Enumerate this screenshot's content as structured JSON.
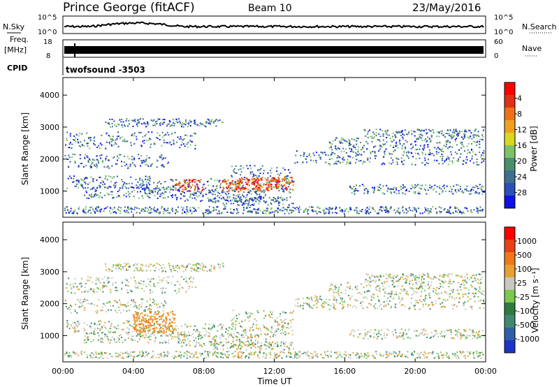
{
  "header": {
    "station": "Prince George (fitACF)",
    "beam": "Beam 10",
    "date": "23/May/2016"
  },
  "noise_panel": {
    "left_label": "N.Sky",
    "left_ticks": [
      "10^5",
      "10^0"
    ],
    "right_label": "N.Search",
    "right_ticks": [
      "10^5",
      "10^0"
    ]
  },
  "freq_panel": {
    "left_label_line1": "Freq.",
    "left_label_line2": "[MHz]",
    "left_ticks": [
      "18",
      "8"
    ],
    "right_label": "Nave",
    "right_ticks": [
      "60",
      "0"
    ]
  },
  "cpid": {
    "label": "CPID",
    "value": "twofsound -3503"
  },
  "chart_data": [
    {
      "type": "heatmap",
      "ylabel": "Slant Range [km]",
      "yticks": [
        "1000",
        "2000",
        "3000",
        "4000"
      ],
      "ylim": [
        180,
        4550
      ],
      "xlim": [
        0,
        24
      ],
      "colorbar": {
        "label": "Power [dB]",
        "ticks": [
          "4",
          "8",
          "12",
          "16",
          "20",
          "24",
          "28"
        ],
        "range": [
          0,
          32
        ],
        "colors": [
          "#1010e8",
          "#2a4fb8",
          "#3e6f8e",
          "#4a8f6a",
          "#7cc26a",
          "#d8d820",
          "#f0a020",
          "#f07018",
          "#e03018",
          "#ff0000"
        ]
      }
    },
    {
      "type": "heatmap",
      "ylabel": "Slant Range [km]",
      "yticks": [
        "1000",
        "2000",
        "3000",
        "4000"
      ],
      "ylim": [
        180,
        4550
      ],
      "xlim": [
        0,
        24
      ],
      "colorbar": {
        "label": "Velocity [m s⁻¹]",
        "ticks": [
          "1000",
          "500",
          "100",
          "25",
          "-25",
          "-100",
          "-500",
          "-1000"
        ],
        "colors": [
          "#1c35c8",
          "#2e5fa8",
          "#3f8a6e",
          "#2f7a40",
          "#7cc850",
          "#c8c8c0",
          "#e8a030",
          "#f07818",
          "#e84018",
          "#ff0000"
        ]
      }
    }
  ],
  "x_axis": {
    "label": "Time UT",
    "ticks": [
      "00:00",
      "04:00",
      "08:00",
      "12:00",
      "16:00",
      "20:00",
      "00:00"
    ]
  }
}
